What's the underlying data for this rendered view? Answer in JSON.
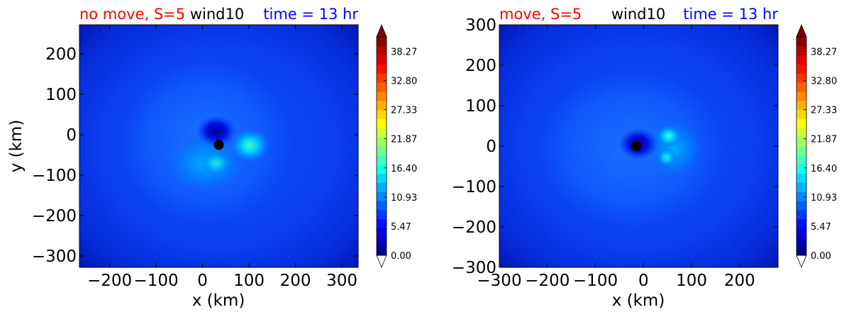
{
  "colorbar": {
    "ticks": [
      "38.27",
      "32.80",
      "27.33",
      "21.87",
      "16.40",
      "10.93",
      "5.47",
      "0.00"
    ],
    "colors": [
      "#00008f",
      "#0000b8",
      "#0000e0",
      "#0010ff",
      "#0038ff",
      "#0060ff",
      "#0088ff",
      "#00b0ff",
      "#00d8ff",
      "#10ffef",
      "#40ffbf",
      "#70ff8f",
      "#9fff60",
      "#cfff30",
      "#ffff00",
      "#ffd800",
      "#ffb000",
      "#ff8800",
      "#ff6000",
      "#ff3800",
      "#ff1000",
      "#e00000",
      "#b80000",
      "#900000"
    ],
    "over_color": "#800000",
    "under_color": "#ffffff"
  },
  "chart_data": [
    {
      "type": "heatmap",
      "variable": "wind10",
      "title_left": "no move, S=5",
      "title_center": "wind10",
      "title_right": "time = 13 hr",
      "title_colors": {
        "left": "#ff0000",
        "center": "#000000",
        "right": "#0000ff"
      },
      "xlabel": "x (km)",
      "ylabel": "y (km)",
      "xlim": [
        -265,
        335
      ],
      "ylim": [
        -328,
        272
      ],
      "xticks": [
        -200,
        -100,
        0,
        100,
        200,
        300
      ],
      "xtick_labels": [
        "−200",
        "−100",
        "0",
        "100",
        "200",
        "300"
      ],
      "yticks": [
        200,
        100,
        0,
        -100,
        -200,
        -300
      ],
      "ytick_labels": [
        "200",
        "100",
        "0",
        "−100",
        "−200",
        "−300"
      ],
      "center_marker": {
        "x": 35,
        "y": -25
      },
      "wind_max_location": {
        "x": 100,
        "y": -25
      },
      "colorbar_range": [
        0.0,
        41.0
      ]
    },
    {
      "type": "heatmap",
      "variable": "wind10",
      "title_left": "move, S=5",
      "title_center": "wind10",
      "title_right": "time = 13 hr",
      "title_colors": {
        "left": "#ff0000",
        "center": "#000000",
        "right": "#0000ff"
      },
      "xlabel": "x (km)",
      "ylabel": "",
      "xlim": [
        -300,
        280
      ],
      "ylim": [
        -300,
        300
      ],
      "xticks": [
        -300,
        -200,
        -100,
        0,
        100,
        200
      ],
      "xtick_labels": [
        "−300",
        "−200",
        "−100",
        "0",
        "100",
        "200"
      ],
      "yticks": [
        300,
        200,
        100,
        0,
        -100,
        -200,
        -300
      ],
      "ytick_labels": [
        "300",
        "200",
        "100",
        "0",
        "−100",
        "−200",
        "−300"
      ],
      "center_marker": {
        "x": -15,
        "y": 0
      },
      "wind_max_location": {
        "x": 50,
        "y": 10
      },
      "colorbar_range": [
        0.0,
        41.0
      ]
    }
  ]
}
